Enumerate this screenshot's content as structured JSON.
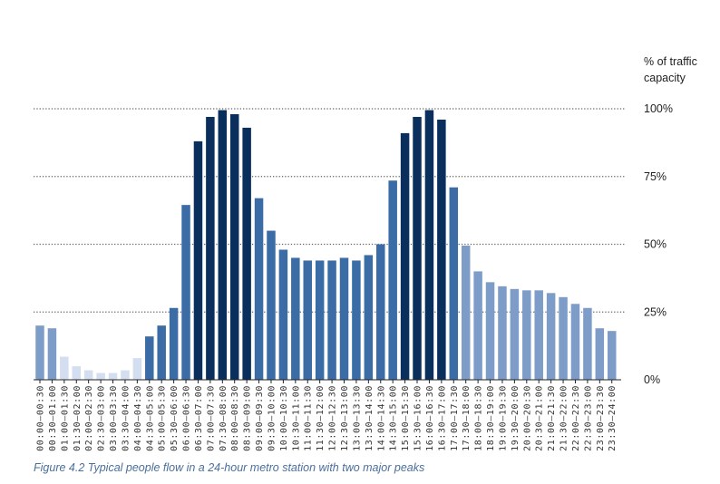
{
  "chart_data": {
    "type": "bar",
    "ylabel": "% of traffic capacity",
    "ylabel_lines": [
      "% of traffic",
      "capacity"
    ],
    "ylim": [
      0,
      100
    ],
    "yticks": [
      0,
      25,
      50,
      75,
      100
    ],
    "ytick_labels": [
      "0%",
      "25%",
      "50%",
      "75%",
      "100%"
    ],
    "grid": "dotted horizontal lines at 25%, 50%, 75%, 100%",
    "y_axis_position": "right",
    "categories": [
      "00:00–00:30",
      "00:30–01:00",
      "01:00–01:30",
      "01:30–02:00",
      "02:00–02:30",
      "02:30–03:00",
      "03:00–03:30",
      "03:30–04:00",
      "04:00–04:30",
      "04:30–05:00",
      "05:00–05:30",
      "05:30–06:00",
      "06:00–06:30",
      "06:30–07:00",
      "07:00–07:30",
      "07:30–08:00",
      "08:00–08:30",
      "08:30–09:00",
      "09:00–09:30",
      "09:30–10:00",
      "10:00–10:30",
      "10:30–11:00",
      "11:00–11:30",
      "11:30–12:00",
      "12:00–12:30",
      "12:30–13:00",
      "13:00–13:30",
      "13:30–14:00",
      "14:00–14:30",
      "14:30–15:00",
      "15:00–15:30",
      "15:30–16:00",
      "16:00–16:30",
      "16:30–17:00",
      "17:00–17:30",
      "17:30–18:00",
      "18:00–18:30",
      "18:30–19:00",
      "19:00–19:30",
      "19:30–20:00",
      "20:00–20:30",
      "20:30–21:00",
      "21:00–21:30",
      "21:30–22:00",
      "22:00–22:30",
      "22:30–23:00",
      "23:00–23:30",
      "23:30–24:00"
    ],
    "values": [
      20,
      19,
      8.5,
      5,
      3.5,
      2.5,
      2.5,
      3.5,
      8,
      16,
      20,
      26.5,
      64.5,
      88,
      97,
      99.5,
      98,
      93,
      67,
      55,
      48,
      45,
      44,
      44,
      44,
      45,
      44,
      46,
      50,
      73.5,
      91,
      97,
      99.5,
      96,
      71,
      49.5,
      40,
      36,
      34.5,
      33.5,
      33,
      33,
      32,
      30.5,
      28,
      26.5,
      19,
      18
    ],
    "color_levels": [
      3,
      3,
      4,
      4,
      4,
      4,
      4,
      4,
      4,
      2,
      2,
      2,
      2,
      1,
      1,
      1,
      1,
      1,
      2,
      2,
      2,
      2,
      2,
      2,
      2,
      2,
      2,
      2,
      2,
      2,
      1,
      1,
      1,
      1,
      2,
      3,
      3,
      3,
      3,
      3,
      3,
      3,
      3,
      3,
      3,
      3,
      3,
      3
    ],
    "colors": {
      "1": "#0a2f5c",
      "2": "#3c6ca6",
      "3": "#7d9dc8",
      "4": "#d3def0",
      "grid": "#666666",
      "axis": "#222222",
      "caption": "#4a6f9c"
    }
  },
  "caption": "Figure 4.2  Typical people flow in a 24-hour metro station with two major peaks"
}
